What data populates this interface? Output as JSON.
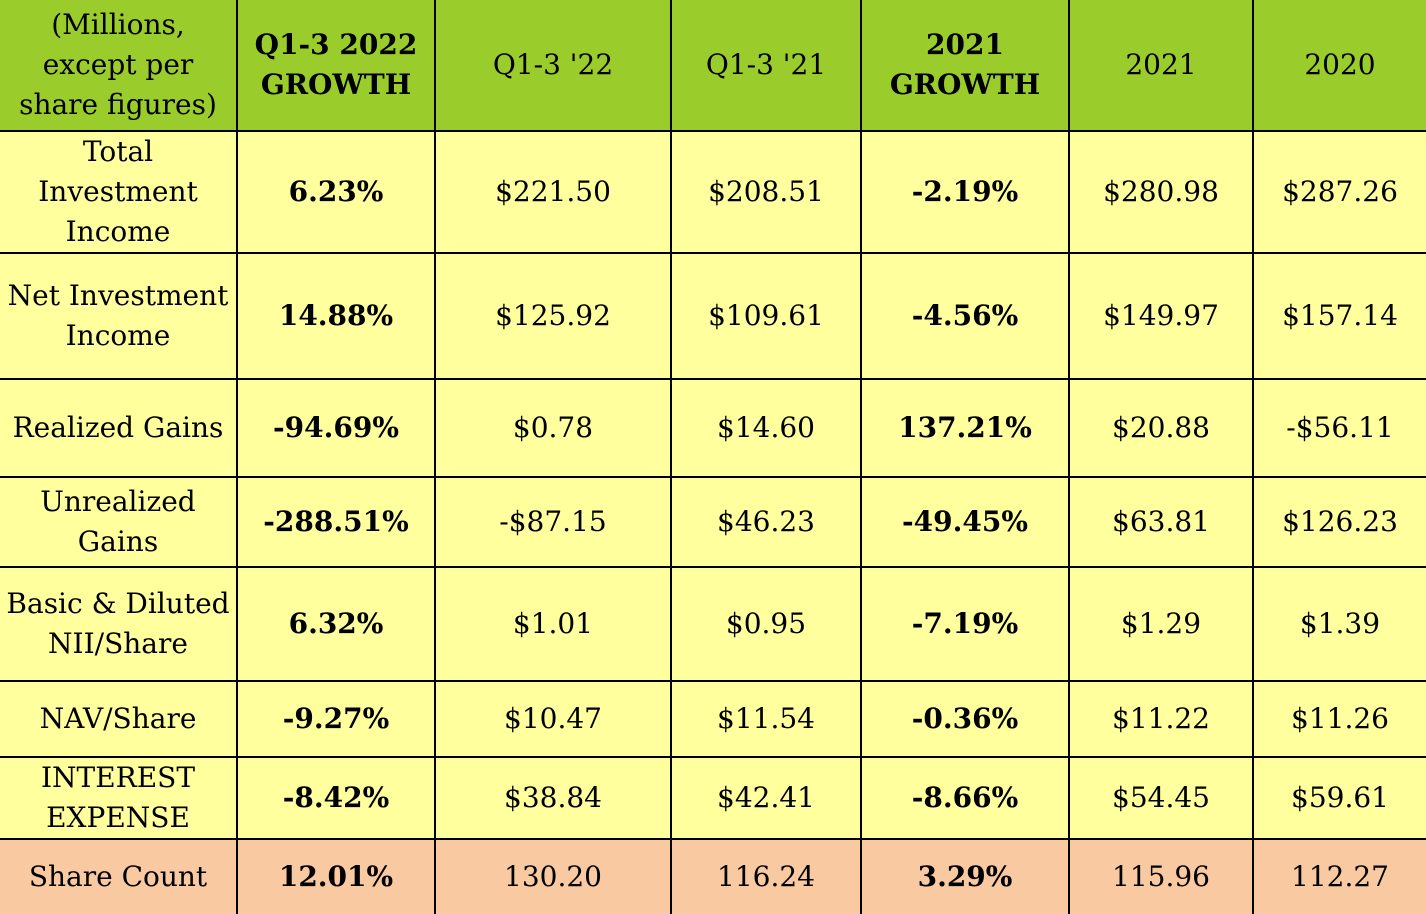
{
  "header": {
    "label_lines": [
      "(Millions,",
      "except per",
      "share figures)"
    ],
    "q13_2022_growth_lines": [
      "Q1-3 2022",
      "GROWTH"
    ],
    "q13_22": "Q1-3 '22",
    "q13_21": "Q1-3 '21",
    "growth_2021_lines": [
      "2021",
      "GROWTH"
    ],
    "y2021": "2021",
    "y2020": "2020"
  },
  "rows": [
    {
      "label_lines": [
        "Total",
        "Investment",
        "Income"
      ],
      "q13_growth": "6.23%",
      "q13_22": "$221.50",
      "q13_21": "$208.51",
      "growth_2021": "-2.19%",
      "y2021": "$280.98",
      "y2020": "$287.26"
    },
    {
      "label_lines": [
        "Net Investment",
        "Income"
      ],
      "q13_growth": "14.88%",
      "q13_22": "$125.92",
      "q13_21": "$109.61",
      "growth_2021": "-4.56%",
      "y2021": "$149.97",
      "y2020": "$157.14"
    },
    {
      "label_lines": [
        "Realized Gains"
      ],
      "q13_growth": "-94.69%",
      "q13_22": "$0.78",
      "q13_21": "$14.60",
      "growth_2021": "137.21%",
      "y2021": "$20.88",
      "y2020": "-$56.11"
    },
    {
      "label_lines": [
        "Unrealized",
        "Gains"
      ],
      "q13_growth": "-288.51%",
      "q13_22": "-$87.15",
      "q13_21": "$46.23",
      "growth_2021": "-49.45%",
      "y2021": "$63.81",
      "y2020": "$126.23"
    },
    {
      "label_lines": [
        "Basic & Diluted",
        "NII/Share"
      ],
      "q13_growth": "6.32%",
      "q13_22": "$1.01",
      "q13_21": "$0.95",
      "growth_2021": "-7.19%",
      "y2021": "$1.29",
      "y2020": "$1.39"
    },
    {
      "label_lines": [
        "NAV/Share"
      ],
      "q13_growth": "-9.27%",
      "q13_22": "$10.47",
      "q13_21": "$11.54",
      "growth_2021": "-0.36%",
      "y2021": "$11.22",
      "y2020": "$11.26"
    },
    {
      "label_lines": [
        "INTEREST",
        "EXPENSE"
      ],
      "q13_growth": "-8.42%",
      "q13_22": "$38.84",
      "q13_21": "$42.41",
      "growth_2021": "-8.66%",
      "y2021": "$54.45",
      "y2020": "$59.61"
    },
    {
      "label_lines": [
        "Share Count"
      ],
      "q13_growth": "12.01%",
      "q13_22": "130.20",
      "q13_21": "116.24",
      "growth_2021": "3.29%",
      "y2021": "115.96",
      "y2020": "112.27"
    }
  ],
  "colors": {
    "header_bg": "#9acd2b",
    "row_bg": "#ffff9e",
    "total_row_bg": "#f9c9a1",
    "border": "#000000"
  }
}
